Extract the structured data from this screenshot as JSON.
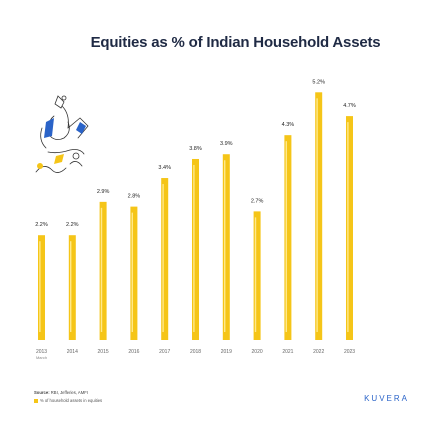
{
  "chart_data": {
    "type": "bar",
    "title": "Equities as % of Indian Household Assets",
    "categories": [
      "2013",
      "2014",
      "2015",
      "2016",
      "2017",
      "2018",
      "2019",
      "2020",
      "2021",
      "2022",
      "2023"
    ],
    "category_sublabels": {
      "2013": "March"
    },
    "values": [
      2.2,
      2.2,
      2.9,
      2.8,
      3.4,
      3.8,
      3.9,
      2.7,
      4.3,
      5.2,
      4.7
    ],
    "value_labels": [
      "2.2%",
      "2.2%",
      "2.9%",
      "2.8%",
      "3.4%",
      "3.8%",
      "3.9%",
      "2.7%",
      "4.3%",
      "5.2%",
      "4.7%"
    ],
    "ylim": [
      0,
      5.5
    ],
    "bar_color": "#f5c518",
    "bar_highlight_color": "#ffe98a",
    "grid": false,
    "legend": "bottom-left"
  },
  "footer": {
    "source_label": "Source:",
    "source_text": " RBI, Jefferies, AMFI",
    "legend_text": "% of household assets in equities",
    "brand": "KUVERA"
  },
  "colors": {
    "title": "#1f2a44",
    "brand": "#2a63c8",
    "bar": "#f5c518"
  }
}
